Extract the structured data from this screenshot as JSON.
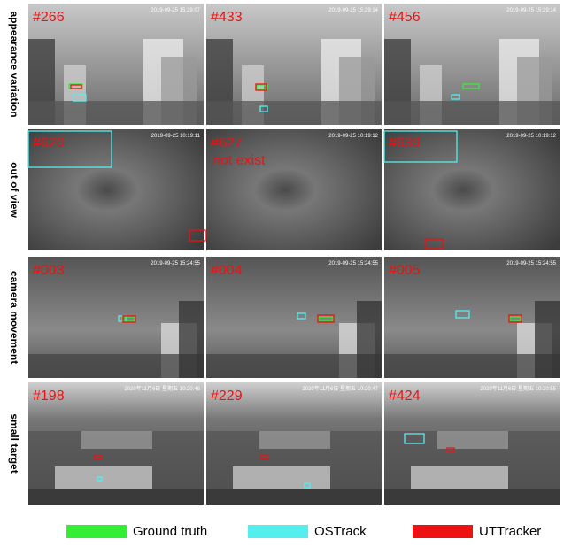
{
  "rows": [
    {
      "label": "appearance variation",
      "frames": [
        {
          "id": "#266",
          "timestamp": "2019-09-25 15:29:07"
        },
        {
          "id": "#433",
          "timestamp": "2019-09-25 15:29:14"
        },
        {
          "id": "#456",
          "timestamp": "2019-09-25 15:29:14"
        }
      ]
    },
    {
      "label": "out of view",
      "frames": [
        {
          "id": "#620",
          "timestamp": "2019-09-25 10:19:11"
        },
        {
          "id": "#627",
          "timestamp": "2019-09-25 10:19:12",
          "note": "not exist"
        },
        {
          "id": "#639",
          "timestamp": "2019-09-25 10:19:12"
        }
      ]
    },
    {
      "label": "camera movement",
      "frames": [
        {
          "id": "#003",
          "timestamp": "2019-09-25 15:24:55"
        },
        {
          "id": "#004",
          "timestamp": "2019-09-25 15:24:55"
        },
        {
          "id": "#005",
          "timestamp": "2019-09-25 15:24:55"
        }
      ]
    },
    {
      "label": "small target",
      "frames": [
        {
          "id": "#198",
          "timestamp": "2020年11月6日 星期五 10:20:46"
        },
        {
          "id": "#229",
          "timestamp": "2020年11月6日 星期五 10:20:47"
        },
        {
          "id": "#424",
          "timestamp": "2020年11月6日 星期五 10:20:55"
        }
      ]
    }
  ],
  "legend": [
    {
      "label": "Ground truth",
      "color": "#33ee33"
    },
    {
      "label": "OSTrack",
      "color": "#55eeee"
    },
    {
      "label": "UTTracker",
      "color": "#ee1111"
    }
  ]
}
